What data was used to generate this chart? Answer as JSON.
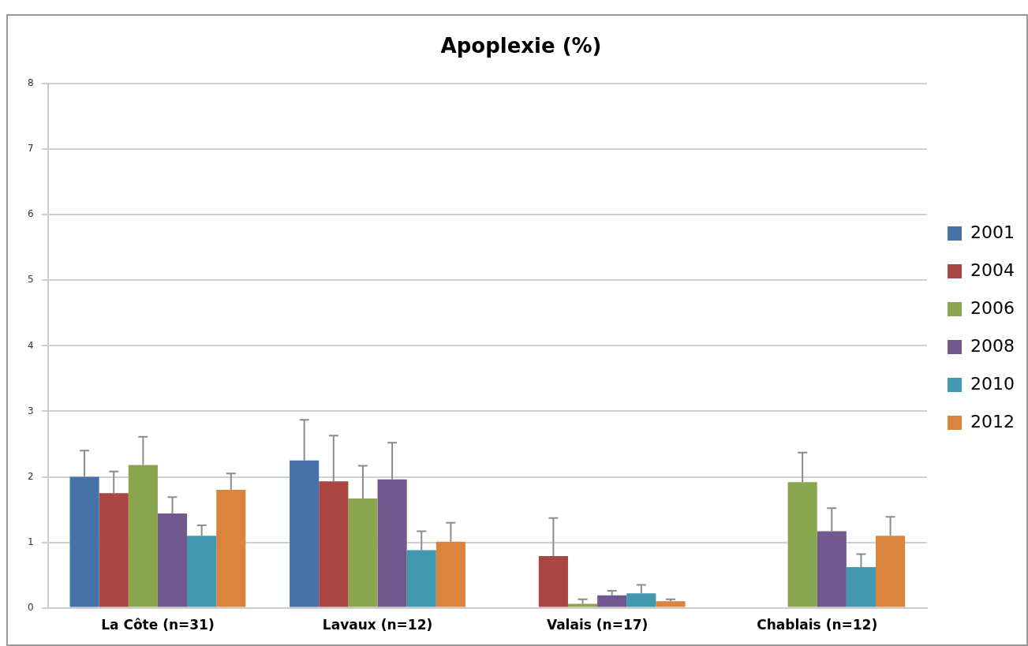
{
  "chart_data": {
    "type": "bar",
    "title": "Apoplexie (%)",
    "categories": [
      "La Côte (n=31)",
      "Lavaux (n=12)",
      "Valais (n=17)",
      "Chablais (n=12)"
    ],
    "series": [
      {
        "name": "2001",
        "color": "#4572a7",
        "values": [
          2.0,
          2.25,
          null,
          null
        ],
        "errors": [
          [
            2.0,
            2.4
          ],
          [
            2.25,
            2.87
          ],
          null,
          null
        ]
      },
      {
        "name": "2004",
        "color": "#aa4643",
        "values": [
          1.75,
          1.93,
          0.79,
          null
        ],
        "errors": [
          [
            1.75,
            2.08
          ],
          [
            1.93,
            2.63
          ],
          [
            0.79,
            1.37
          ],
          null
        ]
      },
      {
        "name": "2006",
        "color": "#89a54e",
        "values": [
          2.18,
          1.67,
          0.06,
          1.92
        ],
        "errors": [
          [
            2.18,
            2.61
          ],
          [
            1.67,
            2.17
          ],
          [
            0.06,
            0.13
          ],
          [
            1.92,
            2.37
          ]
        ]
      },
      {
        "name": "2008",
        "color": "#71588f",
        "values": [
          1.44,
          1.96,
          0.19,
          1.17
        ],
        "errors": [
          [
            1.44,
            1.69
          ],
          [
            1.96,
            2.52
          ],
          [
            0.19,
            0.26
          ],
          [
            1.17,
            1.52
          ]
        ]
      },
      {
        "name": "2010",
        "color": "#4198af",
        "values": [
          1.1,
          0.88,
          0.22,
          0.62
        ],
        "errors": [
          [
            1.1,
            1.26
          ],
          [
            0.88,
            1.17
          ],
          [
            0.22,
            0.35
          ],
          [
            0.62,
            0.82
          ]
        ]
      },
      {
        "name": "2012",
        "color": "#db843d",
        "values": [
          1.8,
          1.01,
          0.1,
          1.1
        ],
        "errors": [
          [
            1.8,
            2.05
          ],
          [
            1.01,
            1.3
          ],
          [
            0.1,
            0.13
          ],
          [
            1.1,
            1.39
          ]
        ]
      }
    ],
    "ylim": [
      0,
      8
    ],
    "yticks": [
      0,
      1,
      2,
      3,
      4,
      5,
      6,
      7,
      8
    ],
    "grid": "y",
    "legend": "right"
  }
}
